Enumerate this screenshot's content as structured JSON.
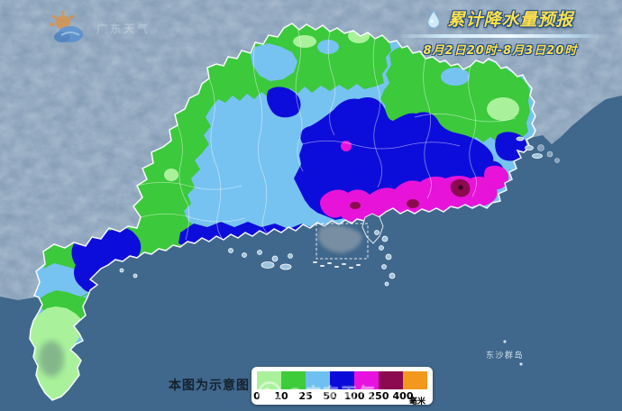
{
  "header": {
    "brand": "广东天气",
    "title": "累计降水量预报",
    "subtitle": "8月2日20时-8月3日20时"
  },
  "map": {
    "labels": {
      "dongsha": "东沙群岛"
    }
  },
  "legend": {
    "note": "本图为示意图",
    "unit": "毫米",
    "values": [
      "0",
      "10",
      "25",
      "50",
      "100",
      "250",
      "400"
    ],
    "colors": [
      "#a9f29b",
      "#3ecc3b",
      "#6ec0f2",
      "#0b0bd9",
      "#e812e0",
      "#8c0a50",
      "#f2981f"
    ]
  },
  "watermark": {
    "text": "@广东天气"
  },
  "colors": {
    "ocean": "#40678c",
    "terrain": "#7c96b1",
    "rain_light": "#76c3f2",
    "rain_green": "#3cc93c",
    "rain_lightgreen": "#a9f29b",
    "rain_blue": "#0d0ddb",
    "rain_magenta": "#e713d9",
    "rain_maroon": "#8c0a50",
    "title_yellow": "#ffe14a"
  }
}
